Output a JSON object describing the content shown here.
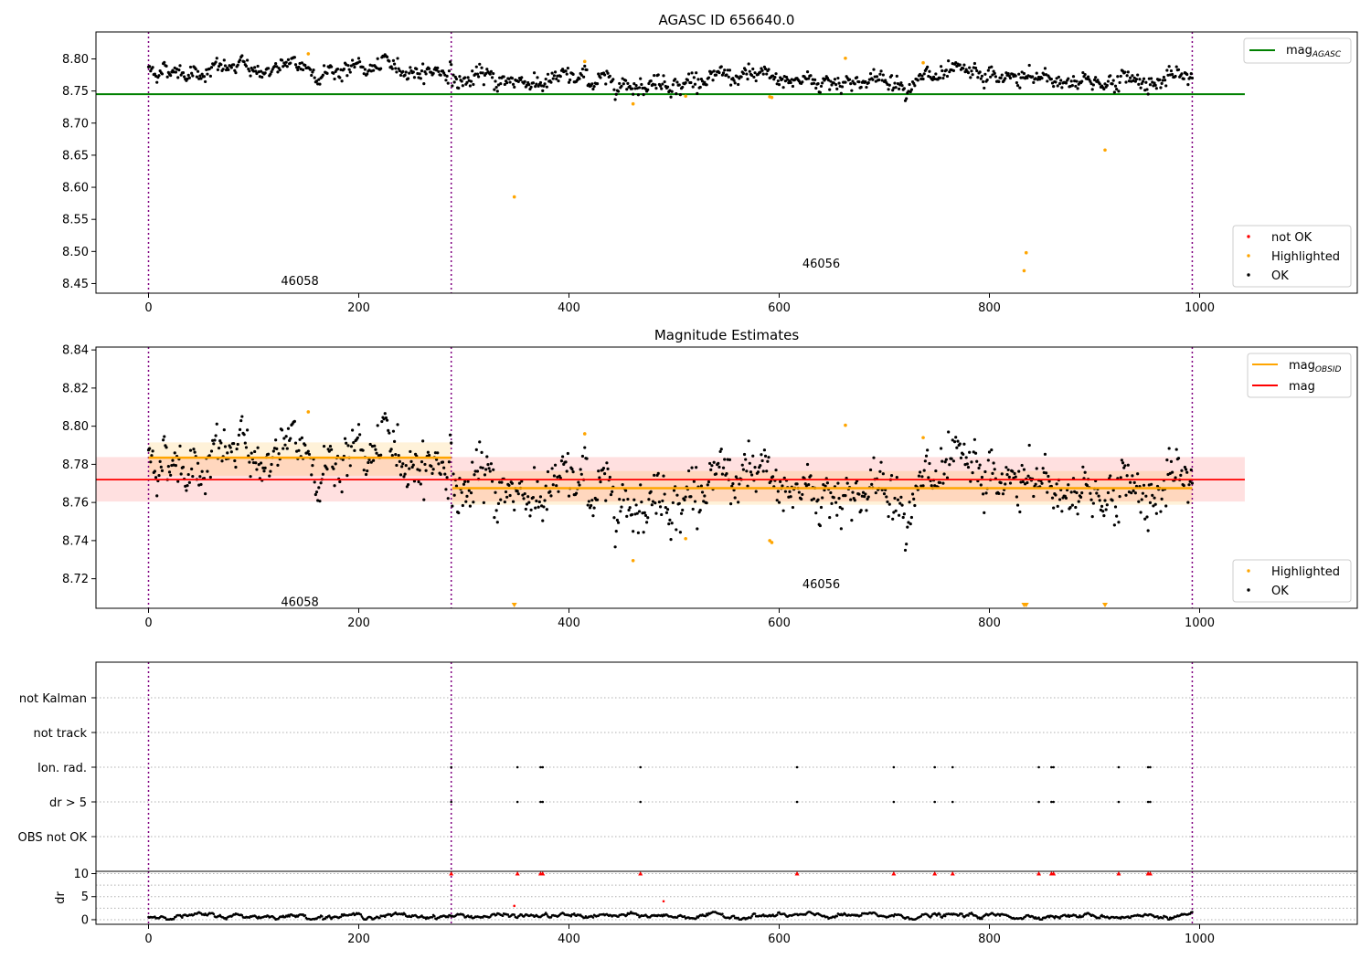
{
  "figure": {
    "top_title": "AGASC ID 656640.0",
    "middle_title": "Magnitude Estimates",
    "obsids": [
      "46058",
      "46056"
    ]
  },
  "colors": {
    "ok": "#000000",
    "highlighted": "#ffa500",
    "not_ok": "#ff0000",
    "agasc_line": "#008000",
    "mean_line": "#ff0000",
    "obsid_line": "#ffa500",
    "obsid_vlines": "#800080"
  },
  "legends": {
    "top_lines": [
      "mag_AGASC"
    ],
    "top_points": [
      "not OK",
      "Highlighted",
      "OK"
    ],
    "middle_lines": [
      "mag_OBSID",
      "mag"
    ],
    "middle_points": [
      "Highlighted",
      "OK"
    ]
  },
  "chart_data": [
    {
      "type": "scatter",
      "title": "AGASC ID 656640.0",
      "xlim": [
        -50,
        1150
      ],
      "ylim": [
        8.435,
        8.842
      ],
      "xticks": [
        0,
        200,
        400,
        600,
        800,
        1000
      ],
      "yticks": [
        8.45,
        8.5,
        8.55,
        8.6,
        8.65,
        8.7,
        8.75,
        8.8
      ],
      "obsid_boundaries": [
        0,
        288,
        993
      ],
      "obsid_labels": [
        {
          "label": "46058",
          "x": 144,
          "y": 8.455
        },
        {
          "label": "46056",
          "x": 640,
          "y": 8.482
        }
      ],
      "hlines": [
        {
          "name": "mag_AGASC",
          "y": 8.745,
          "x": [
            -50,
            1043
          ]
        }
      ],
      "ok_segments": [
        {
          "x": [
            0,
            288
          ],
          "mean": 8.784,
          "noise": 0.008
        },
        {
          "x": [
            289,
            993
          ],
          "mean": 8.767,
          "noise": 0.009
        }
      ],
      "highlighted": [
        [
          152,
          8.808
        ],
        [
          348,
          8.585
        ],
        [
          415,
          8.796
        ],
        [
          461,
          8.73
        ],
        [
          511,
          8.742
        ],
        [
          591,
          8.741
        ],
        [
          593,
          8.74
        ],
        [
          663,
          8.801
        ],
        [
          737,
          8.794
        ],
        [
          833,
          8.47
        ],
        [
          835,
          8.498
        ],
        [
          910,
          8.658
        ]
      ],
      "legend": [
        "mag_AGASC",
        "not OK",
        "Highlighted",
        "OK"
      ]
    },
    {
      "type": "scatter",
      "title": "Magnitude Estimates",
      "xlim": [
        -50,
        1150
      ],
      "ylim": [
        8.7045,
        8.8415
      ],
      "xticks": [
        0,
        200,
        400,
        600,
        800,
        1000
      ],
      "yticks": [
        8.72,
        8.74,
        8.76,
        8.78,
        8.8,
        8.82,
        8.84
      ],
      "obsid_boundaries": [
        0,
        288,
        993
      ],
      "obsid_labels": [
        {
          "label": "46058",
          "x": 144,
          "y": 8.708
        },
        {
          "label": "46056",
          "x": 640,
          "y": 8.7175
        }
      ],
      "mag": {
        "value": 8.772,
        "band": [
          8.7605,
          8.7838
        ],
        "x": [
          -50,
          1043
        ]
      },
      "mag_obsid": [
        {
          "x": [
            0,
            288
          ],
          "value": 8.7835,
          "band": [
            8.774,
            8.7915
          ]
        },
        {
          "x": [
            289,
            993
          ],
          "value": 8.7675,
          "band": [
            8.7588,
            8.7765
          ]
        }
      ],
      "highlighted": [
        [
          152,
          8.8075
        ],
        [
          415,
          8.796
        ],
        [
          461,
          8.7295
        ],
        [
          511,
          8.741
        ],
        [
          591,
          8.74
        ],
        [
          593,
          8.739
        ],
        [
          663,
          8.8005
        ],
        [
          737,
          8.794
        ]
      ],
      "highlighted_off_scale": [
        348,
        833,
        835,
        910
      ],
      "legend": [
        "mag_OBSID",
        "mag",
        "Highlighted",
        "OK"
      ]
    },
    {
      "type": "scatter",
      "title": "",
      "xlim": [
        -50,
        1150
      ],
      "categories": [
        "not Kalman",
        "not track",
        "Ion. rad.",
        "dr > 5",
        "OBS not OK"
      ],
      "flags": {
        "Ion. rad.": [
          288,
          351,
          373,
          375,
          468,
          617,
          709,
          748,
          765,
          847,
          859,
          861,
          923,
          951,
          953
        ],
        "dr > 5": [
          288,
          351,
          373,
          375,
          468,
          617,
          709,
          748,
          765,
          847,
          859,
          861,
          923,
          951,
          953
        ]
      }
    },
    {
      "type": "scatter",
      "title": "",
      "xlim": [
        -50,
        1150
      ],
      "ylim": [
        -1,
        10.5
      ],
      "ylabel": "dr",
      "xticks": [
        0,
        200,
        400,
        600,
        800,
        1000
      ],
      "yticks": [
        0,
        5,
        10
      ],
      "dr_over_5": [
        288,
        351,
        373,
        375,
        468,
        617,
        709,
        748,
        765,
        847,
        859,
        861,
        923,
        951,
        953
      ],
      "dr_red_points": [
        [
          348,
          3.0
        ],
        [
          490,
          4.0
        ]
      ]
    }
  ]
}
